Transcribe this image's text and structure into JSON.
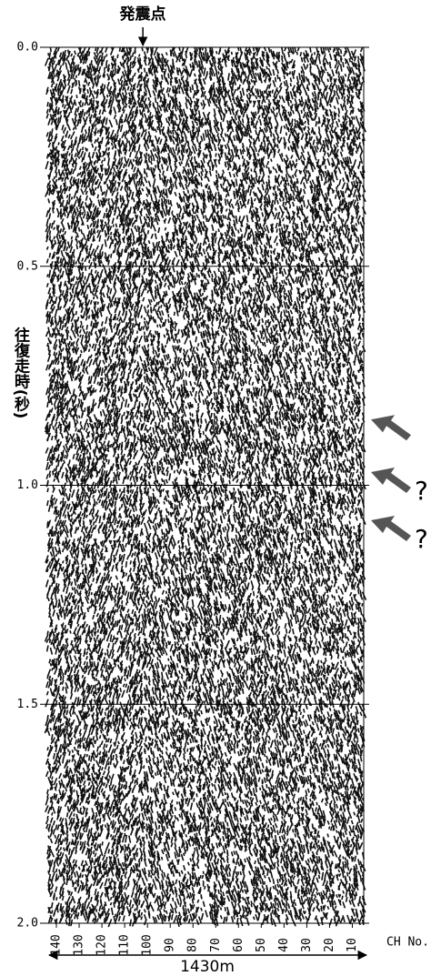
{
  "chart_data": {
    "type": "seismic",
    "title": "発震点",
    "shot_point": 102,
    "y_label": "往復走時(秒)",
    "x_label": "CH No.",
    "scale_label": "1430m",
    "ylim": [
      0,
      2
    ],
    "yticks": [
      {
        "value": 0,
        "label": "0.0"
      },
      {
        "value": 0.5,
        "label": "0.5"
      },
      {
        "value": 1,
        "label": "1.0"
      },
      {
        "value": 1.5,
        "label": "1.5"
      },
      {
        "value": 2,
        "label": "2.0"
      }
    ],
    "xlim": [
      144,
      5
    ],
    "xticks": [
      140,
      130,
      120,
      110,
      100,
      90,
      80,
      70,
      60,
      50,
      40,
      30,
      20,
      10
    ],
    "grid": true,
    "arrows": [
      {
        "y": 0.85
      },
      {
        "y": 0.97,
        "label": "?"
      },
      {
        "y": 1.08,
        "label": "?"
      }
    ]
  }
}
